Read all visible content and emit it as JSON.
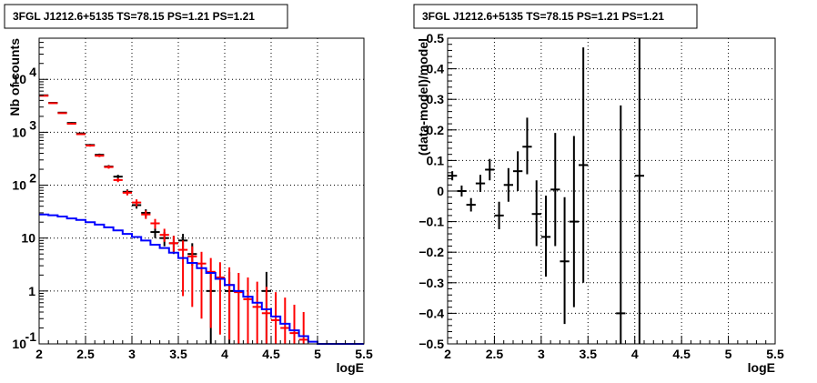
{
  "chart_data": [
    {
      "type": "line",
      "title": "3FGL J1212.6+5135 TS=78.15 PS=1.21 PS=1.21",
      "xlabel": "logE",
      "ylabel": "Nb of counts",
      "xlim": [
        2,
        5.5
      ],
      "ylim": [
        0.1,
        60000
      ],
      "yscale": "log",
      "grid": true,
      "x_ticks": [
        "2",
        "2.5",
        "3",
        "3.5",
        "4",
        "4.5",
        "5",
        "5.5"
      ],
      "y_ticks": [
        {
          "v": 0.1,
          "main": "10",
          "exp": "-1"
        },
        {
          "v": 1,
          "main": "1",
          "exp": ""
        },
        {
          "v": 10,
          "main": "10",
          "exp": ""
        },
        {
          "v": 100,
          "main": "10",
          "exp": "2"
        },
        {
          "v": 1000,
          "main": "10",
          "exp": "3"
        },
        {
          "v": 10000,
          "main": "10",
          "exp": "4"
        }
      ],
      "series": [
        {
          "color": "#000000",
          "style": "errorbar",
          "points": [
            {
              "x": 2.05,
              "y": 5000,
              "lo": 4900,
              "hi": 5100
            },
            {
              "x": 2.15,
              "y": 3600,
              "lo": 3520,
              "hi": 3680
            },
            {
              "x": 2.25,
              "y": 2350,
              "lo": 2290,
              "hi": 2410
            },
            {
              "x": 2.35,
              "y": 1500,
              "lo": 1450,
              "hi": 1550
            },
            {
              "x": 2.45,
              "y": 950,
              "lo": 910,
              "hi": 990
            },
            {
              "x": 2.55,
              "y": 575,
              "lo": 550,
              "hi": 600
            },
            {
              "x": 2.65,
              "y": 375,
              "lo": 355,
              "hi": 395
            },
            {
              "x": 2.75,
              "y": 225,
              "lo": 210,
              "hi": 240
            },
            {
              "x": 2.85,
              "y": 145,
              "lo": 133,
              "hi": 157
            },
            {
              "x": 2.95,
              "y": 75,
              "lo": 67,
              "hi": 83
            },
            {
              "x": 3.05,
              "y": 42,
              "lo": 36,
              "hi": 48
            },
            {
              "x": 3.15,
              "y": 30,
              "lo": 25,
              "hi": 35
            },
            {
              "x": 3.25,
              "y": 13,
              "lo": 10,
              "hi": 17
            },
            {
              "x": 3.35,
              "y": 10,
              "lo": 7,
              "hi": 13
            },
            {
              "x": 3.45,
              "y": 8,
              "lo": 5,
              "hi": 11
            },
            {
              "x": 3.55,
              "y": 9,
              "lo": 6,
              "hi": 12
            },
            {
              "x": 3.65,
              "y": 5,
              "lo": 3,
              "hi": 8
            },
            {
              "x": 3.85,
              "y": 1,
              "lo": 0.1,
              "hi": 2.3
            },
            {
              "x": 4.05,
              "y": 1,
              "lo": 0.1,
              "hi": 2.3
            },
            {
              "x": 4.45,
              "y": 1,
              "lo": 0.1,
              "hi": 2.3
            }
          ]
        },
        {
          "color": "#ff0000",
          "style": "errorbar",
          "points": [
            {
              "x": 2.05,
              "y": 4900,
              "lo": 4830,
              "hi": 4970
            },
            {
              "x": 2.15,
              "y": 3550,
              "lo": 3490,
              "hi": 3610
            },
            {
              "x": 2.25,
              "y": 2300,
              "lo": 2250,
              "hi": 2350
            },
            {
              "x": 2.35,
              "y": 1450,
              "lo": 1410,
              "hi": 1490
            },
            {
              "x": 2.45,
              "y": 920,
              "lo": 890,
              "hi": 950
            },
            {
              "x": 2.55,
              "y": 560,
              "lo": 535,
              "hi": 585
            },
            {
              "x": 2.65,
              "y": 360,
              "lo": 340,
              "hi": 380
            },
            {
              "x": 2.75,
              "y": 220,
              "lo": 205,
              "hi": 235
            },
            {
              "x": 2.85,
              "y": 125,
              "lo": 114,
              "hi": 136
            },
            {
              "x": 2.95,
              "y": 72,
              "lo": 64,
              "hi": 80
            },
            {
              "x": 3.05,
              "y": 47,
              "lo": 40,
              "hi": 54
            },
            {
              "x": 3.15,
              "y": 28,
              "lo": 23,
              "hi": 33
            },
            {
              "x": 3.25,
              "y": 19,
              "lo": 15,
              "hi": 23
            },
            {
              "x": 3.35,
              "y": 11.5,
              "lo": 8.5,
              "hi": 15
            },
            {
              "x": 3.45,
              "y": 8,
              "lo": 5.5,
              "hi": 11
            },
            {
              "x": 3.55,
              "y": 6,
              "lo": 0.8,
              "hi": 9
            },
            {
              "x": 3.65,
              "y": 4.5,
              "lo": 0.5,
              "hi": 7
            },
            {
              "x": 3.75,
              "y": 3.3,
              "lo": 0.3,
              "hi": 5.5
            },
            {
              "x": 3.85,
              "y": 2.3,
              "lo": 0.2,
              "hi": 4.2
            },
            {
              "x": 3.95,
              "y": 1.8,
              "lo": 0.15,
              "hi": 3.5
            },
            {
              "x": 4.05,
              "y": 1.3,
              "lo": 0.12,
              "hi": 2.8
            },
            {
              "x": 4.15,
              "y": 0.95,
              "lo": 0.1,
              "hi": 2.2
            },
            {
              "x": 4.25,
              "y": 0.7,
              "lo": 0.1,
              "hi": 1.8
            },
            {
              "x": 4.35,
              "y": 0.5,
              "lo": 0.1,
              "hi": 1.5
            },
            {
              "x": 4.45,
              "y": 0.38,
              "lo": 0.1,
              "hi": 1.2
            },
            {
              "x": 4.55,
              "y": 0.28,
              "lo": 0.1,
              "hi": 0.95
            },
            {
              "x": 4.65,
              "y": 0.2,
              "lo": 0.1,
              "hi": 0.75
            },
            {
              "x": 4.75,
              "y": 0.16,
              "lo": 0.1,
              "hi": 0.55
            },
            {
              "x": 4.85,
              "y": 0.12,
              "lo": 0.1,
              "hi": 0.4
            }
          ]
        },
        {
          "color": "#0000ff",
          "style": "step",
          "bin_edges": [
            2.0,
            2.1,
            2.2,
            2.3,
            2.4,
            2.5,
            2.6,
            2.7,
            2.8,
            2.9,
            3.0,
            3.1,
            3.2,
            3.3,
            3.4,
            3.5,
            3.6,
            3.7,
            3.8,
            3.9,
            4.0,
            4.1,
            4.2,
            4.3,
            4.4,
            4.5,
            4.6,
            4.7,
            4.8,
            4.9,
            5.0,
            5.5
          ],
          "values": [
            28,
            27,
            25.5,
            23.5,
            22,
            20,
            18,
            16,
            14,
            12,
            10.5,
            9,
            7.5,
            6.5,
            5.3,
            4.2,
            3.4,
            2.7,
            2.2,
            1.7,
            1.3,
            1.0,
            0.78,
            0.6,
            0.45,
            0.33,
            0.24,
            0.18,
            0.14,
            0.11,
            0.1
          ]
        }
      ]
    },
    {
      "type": "scatter",
      "title": "3FGL J1212.6+5135 TS=78.15 PS=1.21 PS=1.21",
      "xlabel": "logE",
      "ylabel": "(data-model)/model",
      "xlim": [
        2,
        5.5
      ],
      "ylim": [
        -0.5,
        0.5
      ],
      "grid": true,
      "x_ticks": [
        "2",
        "2.5",
        "3",
        "3.5",
        "4",
        "4.5",
        "5",
        "5.5"
      ],
      "y_ticks": [
        "−0.5",
        "−0.4",
        "−0.3",
        "−0.2",
        "−0.1",
        "0",
        "0.1",
        "0.2",
        "0.3",
        "0.4",
        "0.5"
      ],
      "series": [
        {
          "color": "#000000",
          "style": "errorbar",
          "points": [
            {
              "x": 2.05,
              "y": 0.05,
              "lo": 0.035,
              "hi": 0.065
            },
            {
              "x": 2.15,
              "y": 0.0,
              "lo": -0.018,
              "hi": 0.018
            },
            {
              "x": 2.25,
              "y": -0.045,
              "lo": -0.067,
              "hi": -0.023
            },
            {
              "x": 2.35,
              "y": 0.025,
              "lo": -0.003,
              "hi": 0.053
            },
            {
              "x": 2.45,
              "y": 0.07,
              "lo": 0.035,
              "hi": 0.105
            },
            {
              "x": 2.55,
              "y": -0.08,
              "lo": -0.125,
              "hi": -0.035
            },
            {
              "x": 2.65,
              "y": 0.02,
              "lo": -0.035,
              "hi": 0.075
            },
            {
              "x": 2.75,
              "y": 0.065,
              "lo": 0.0,
              "hi": 0.13
            },
            {
              "x": 2.85,
              "y": 0.145,
              "lo": 0.055,
              "hi": 0.24
            },
            {
              "x": 2.95,
              "y": -0.075,
              "lo": -0.18,
              "hi": 0.035
            },
            {
              "x": 3.05,
              "y": -0.15,
              "lo": -0.28,
              "hi": -0.015
            },
            {
              "x": 3.15,
              "y": 0.005,
              "lo": -0.18,
              "hi": 0.19
            },
            {
              "x": 3.25,
              "y": -0.23,
              "lo": -0.435,
              "hi": -0.02
            },
            {
              "x": 3.35,
              "y": -0.1,
              "lo": -0.38,
              "hi": 0.18
            },
            {
              "x": 3.45,
              "y": 0.085,
              "lo": -0.3,
              "hi": 0.47
            },
            {
              "x": 3.85,
              "y": -0.4,
              "lo": -0.5,
              "hi": 0.28
            },
            {
              "x": 4.05,
              "y": 0.05,
              "lo": -0.5,
              "hi": 0.5
            }
          ]
        }
      ]
    }
  ]
}
